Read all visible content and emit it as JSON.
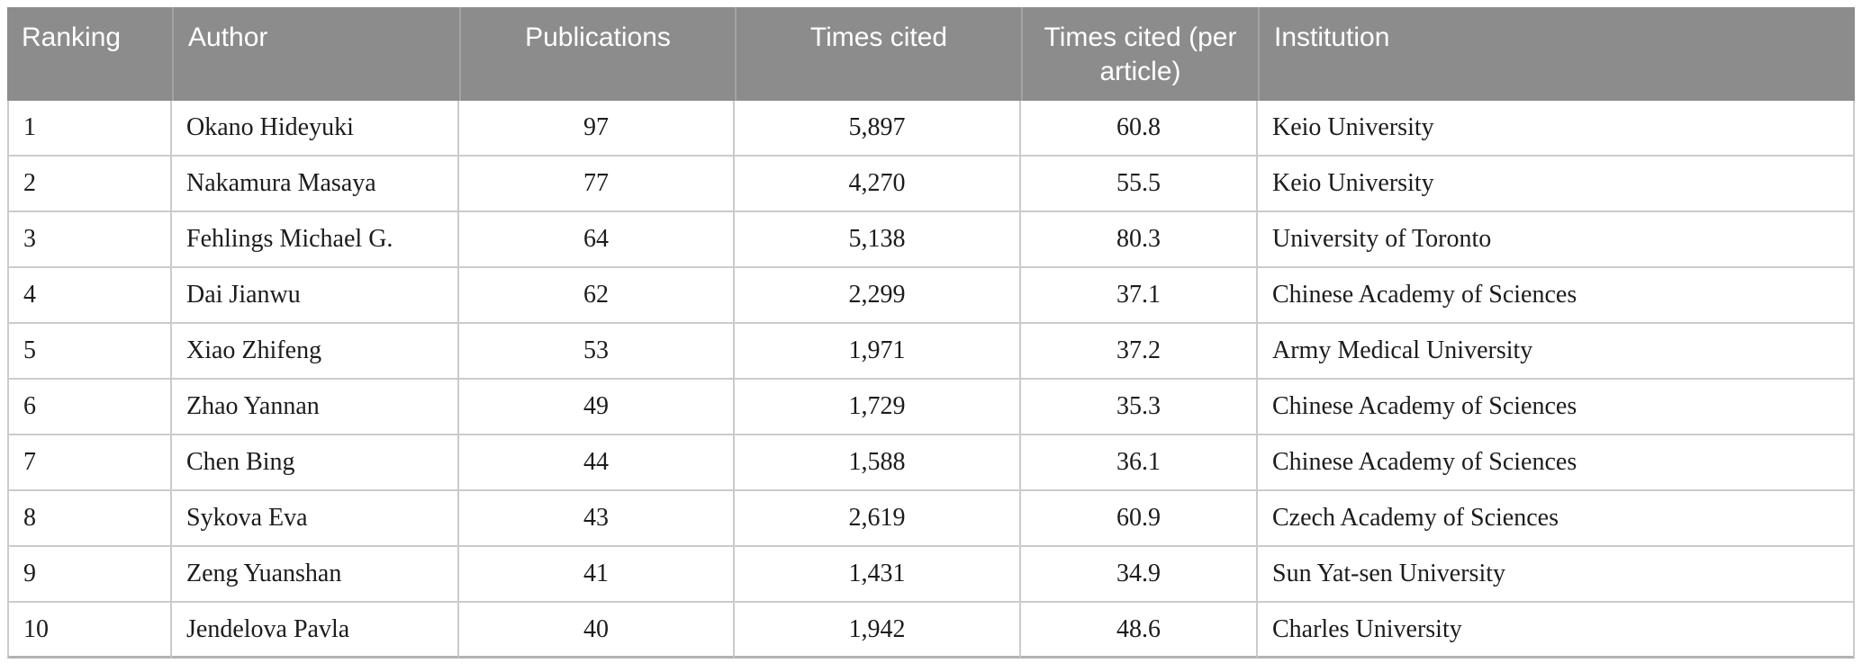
{
  "table": {
    "name": "top-authors-ranking-table",
    "columns": [
      {
        "key": "ranking",
        "label": "Ranking",
        "align": "left"
      },
      {
        "key": "author",
        "label": "Author",
        "align": "left"
      },
      {
        "key": "publications",
        "label": "Publications",
        "align": "center"
      },
      {
        "key": "times_cited",
        "label": "Times cited",
        "align": "center"
      },
      {
        "key": "times_cited_per_article",
        "label": "Times cited (per article)",
        "align": "center"
      },
      {
        "key": "institution",
        "label": "Institution",
        "align": "left"
      }
    ],
    "rows": [
      {
        "ranking": "1",
        "author": "Okano Hideyuki",
        "publications": "97",
        "times_cited": "5,897",
        "times_cited_per_article": "60.8",
        "institution": "Keio University"
      },
      {
        "ranking": "2",
        "author": "Nakamura Masaya",
        "publications": "77",
        "times_cited": "4,270",
        "times_cited_per_article": "55.5",
        "institution": "Keio University"
      },
      {
        "ranking": "3",
        "author": "Fehlings Michael G.",
        "publications": "64",
        "times_cited": "5,138",
        "times_cited_per_article": "80.3",
        "institution": "University of Toronto"
      },
      {
        "ranking": "4",
        "author": "Dai Jianwu",
        "publications": "62",
        "times_cited": "2,299",
        "times_cited_per_article": "37.1",
        "institution": "Chinese Academy of Sciences"
      },
      {
        "ranking": "5",
        "author": "Xiao Zhifeng",
        "publications": "53",
        "times_cited": "1,971",
        "times_cited_per_article": "37.2",
        "institution": "Army Medical University"
      },
      {
        "ranking": "6",
        "author": "Zhao Yannan",
        "publications": "49",
        "times_cited": "1,729",
        "times_cited_per_article": "35.3",
        "institution": "Chinese Academy of Sciences"
      },
      {
        "ranking": "7",
        "author": "Chen Bing",
        "publications": "44",
        "times_cited": "1,588",
        "times_cited_per_article": "36.1",
        "institution": "Chinese Academy of Sciences"
      },
      {
        "ranking": "8",
        "author": "Sykova Eva",
        "publications": "43",
        "times_cited": "2,619",
        "times_cited_per_article": "60.9",
        "institution": "Czech Academy of Sciences"
      },
      {
        "ranking": "9",
        "author": "Zeng Yuanshan",
        "publications": "41",
        "times_cited": "1,431",
        "times_cited_per_article": "34.9",
        "institution": "Sun Yat-sen University"
      },
      {
        "ranking": "10",
        "author": "Jendelova Pavla",
        "publications": "40",
        "times_cited": "1,942",
        "times_cited_per_article": "48.6",
        "institution": "Charles University"
      }
    ]
  },
  "colors": {
    "header_background": "#8c8c8c",
    "header_text": "#ffffff",
    "header_divider": "#a3a3a3",
    "grid_line": "#cbcbcb",
    "bottom_rule": "#b3b3b3",
    "body_text": "#1c1c1c",
    "page_background": "#ffffff"
  }
}
